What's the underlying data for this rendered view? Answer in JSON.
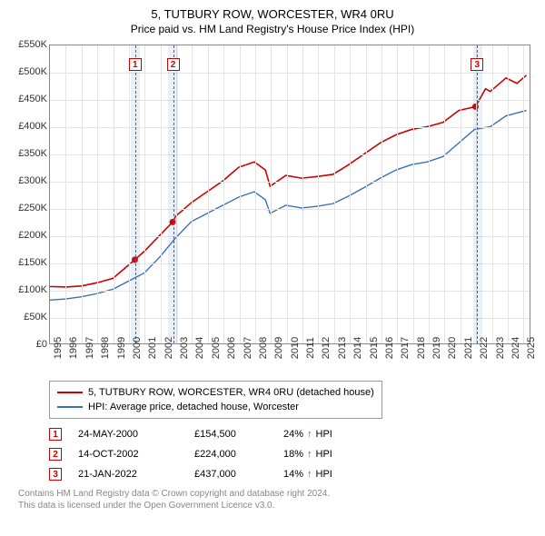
{
  "title": "5, TUTBURY ROW, WORCESTER, WR4 0RU",
  "subtitle": "Price paid vs. HM Land Registry's House Price Index (HPI)",
  "chart": {
    "type": "line",
    "xlim": [
      1995,
      2025.5
    ],
    "ylim": [
      0,
      550000
    ],
    "ytick_step": 50000,
    "yticks_labels": [
      "£0",
      "£50K",
      "£100K",
      "£150K",
      "£200K",
      "£250K",
      "£300K",
      "£350K",
      "£400K",
      "£450K",
      "£500K",
      "£550K"
    ],
    "xticks": [
      1995,
      1996,
      1997,
      1998,
      1999,
      2000,
      2001,
      2002,
      2003,
      2004,
      2005,
      2006,
      2007,
      2008,
      2009,
      2010,
      2011,
      2012,
      2013,
      2014,
      2015,
      2016,
      2017,
      2018,
      2019,
      2020,
      2021,
      2022,
      2023,
      2024,
      2025
    ],
    "background_color": "#ffffff",
    "grid_color": "#e4e4e4",
    "border_color": "#888888",
    "bands": [
      {
        "start": 2000.1,
        "end": 2000.7,
        "color": "rgba(70,130,200,0.12)"
      },
      {
        "start": 2002.5,
        "end": 2003.1,
        "color": "rgba(70,130,200,0.12)"
      },
      {
        "start": 2021.8,
        "end": 2022.4,
        "color": "rgba(70,130,200,0.12)"
      }
    ],
    "vlines": [
      {
        "x": 2000.4,
        "color": "#cc3333",
        "dash": "4,3"
      },
      {
        "x": 2002.8,
        "color": "#cc3333",
        "dash": "4,3"
      },
      {
        "x": 2022.06,
        "color": "#cc3333",
        "dash": "4,3"
      }
    ],
    "markers": [
      {
        "n": "1",
        "x": 2000.4,
        "y_top": 14
      },
      {
        "n": "2",
        "x": 2002.8,
        "y_top": 14
      },
      {
        "n": "3",
        "x": 2022.06,
        "y_top": 14
      }
    ],
    "series": [
      {
        "name": "5, TUTBURY ROW, WORCESTER, WR4 0RU (detached house)",
        "color": "#cc0000",
        "width": 1.6,
        "data": [
          [
            1995,
            105000
          ],
          [
            1996,
            104000
          ],
          [
            1997,
            106000
          ],
          [
            1998,
            112000
          ],
          [
            1999,
            120000
          ],
          [
            2000.4,
            154500
          ],
          [
            2001,
            170000
          ],
          [
            2002,
            200000
          ],
          [
            2002.8,
            224000
          ],
          [
            2003,
            235000
          ],
          [
            2004,
            260000
          ],
          [
            2005,
            280000
          ],
          [
            2006,
            300000
          ],
          [
            2007,
            325000
          ],
          [
            2008,
            335000
          ],
          [
            2008.7,
            320000
          ],
          [
            2009,
            290000
          ],
          [
            2010,
            310000
          ],
          [
            2011,
            305000
          ],
          [
            2012,
            308000
          ],
          [
            2013,
            312000
          ],
          [
            2014,
            330000
          ],
          [
            2015,
            350000
          ],
          [
            2016,
            370000
          ],
          [
            2017,
            385000
          ],
          [
            2018,
            395000
          ],
          [
            2019,
            400000
          ],
          [
            2020,
            408000
          ],
          [
            2021,
            430000
          ],
          [
            2022.06,
            437000
          ],
          [
            2022.7,
            470000
          ],
          [
            2023,
            465000
          ],
          [
            2024,
            490000
          ],
          [
            2024.7,
            480000
          ],
          [
            2025.3,
            495000
          ]
        ],
        "dots": [
          [
            2000.4,
            154500
          ],
          [
            2002.8,
            224000
          ],
          [
            2022.06,
            437000
          ]
        ]
      },
      {
        "name": "HPI: Average price, detached house, Worcester",
        "color": "#3a6fbf",
        "width": 1.4,
        "data": [
          [
            1995,
            80000
          ],
          [
            1996,
            82000
          ],
          [
            1997,
            86000
          ],
          [
            1998,
            92000
          ],
          [
            1999,
            100000
          ],
          [
            2000,
            115000
          ],
          [
            2001,
            130000
          ],
          [
            2002,
            160000
          ],
          [
            2003,
            195000
          ],
          [
            2004,
            225000
          ],
          [
            2005,
            240000
          ],
          [
            2006,
            255000
          ],
          [
            2007,
            270000
          ],
          [
            2008,
            280000
          ],
          [
            2008.7,
            265000
          ],
          [
            2009,
            240000
          ],
          [
            2010,
            255000
          ],
          [
            2011,
            250000
          ],
          [
            2012,
            253000
          ],
          [
            2013,
            258000
          ],
          [
            2014,
            272000
          ],
          [
            2015,
            288000
          ],
          [
            2016,
            305000
          ],
          [
            2017,
            320000
          ],
          [
            2018,
            330000
          ],
          [
            2019,
            335000
          ],
          [
            2020,
            345000
          ],
          [
            2021,
            370000
          ],
          [
            2022,
            395000
          ],
          [
            2023,
            400000
          ],
          [
            2024,
            420000
          ],
          [
            2025.3,
            430000
          ]
        ]
      }
    ]
  },
  "legend": {
    "items": [
      {
        "color": "#cc0000",
        "label": "5, TUTBURY ROW, WORCESTER, WR4 0RU (detached house)"
      },
      {
        "color": "#3a6fbf",
        "label": "HPI: Average price, detached house, Worcester"
      }
    ]
  },
  "transactions": [
    {
      "n": "1",
      "date": "24-MAY-2000",
      "price": "£154,500",
      "pct": "24%",
      "suffix": "HPI"
    },
    {
      "n": "2",
      "date": "14-OCT-2002",
      "price": "£224,000",
      "pct": "18%",
      "suffix": "HPI"
    },
    {
      "n": "3",
      "date": "21-JAN-2022",
      "price": "£437,000",
      "pct": "14%",
      "suffix": "HPI"
    }
  ],
  "footer": {
    "line1": "Contains HM Land Registry data © Crown copyright and database right 2024.",
    "line2": "This data is licensed under the Open Government Licence v3.0."
  },
  "arrow_glyph": "↑"
}
